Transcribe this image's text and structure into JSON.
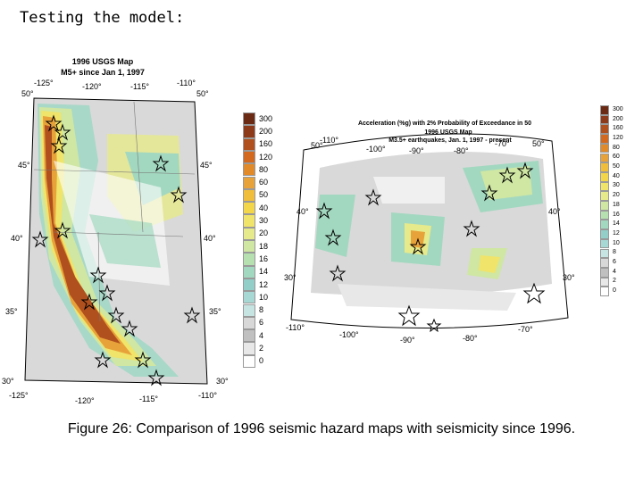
{
  "slide_title": "Testing the model:",
  "caption": "Figure 26: Comparison of 1996 seismic hazard maps with seismicity since 1996.",
  "west_map": {
    "title_line1": "1996 USGS Map",
    "title_line2": "M5+ since Jan 1, 1997",
    "lon_labels_top": [
      "-125°",
      "-120°",
      "-115°",
      "-110°"
    ],
    "lon_labels_bottom": [
      "-125°",
      "-120°",
      "-115°",
      "-110°"
    ],
    "lat_labels_left": [
      "50°",
      "45°",
      "40°",
      "35°",
      "30°"
    ],
    "lat_labels_right": [
      "50°",
      "45°",
      "40°",
      "35°",
      "30°"
    ]
  },
  "east_map": {
    "title_line1": "Acceleration (%g) with 2% Probability of Exceedance in 50",
    "title_line2": "1996 USGS Map",
    "title_line3": "M3.5+ earthquakes, Jan. 1, 1997 - present",
    "lon_labels_top": [
      "-110°",
      "-100°",
      "-90°",
      "-80°",
      "-70°"
    ],
    "lon_labels_bottom": [
      "-110°",
      "-100°",
      "-90°",
      "-80°",
      "-70°"
    ],
    "lat_labels_left": [
      "50°",
      "40°",
      "30°"
    ],
    "lat_labels_right": [
      "50°",
      "40°",
      "30°"
    ]
  },
  "scale_west": {
    "labels": [
      "300",
      "200",
      "160",
      "120",
      "80",
      "60",
      "50",
      "40",
      "30",
      "20",
      "18",
      "16",
      "14",
      "12",
      "10",
      "8",
      "6",
      "4",
      "2",
      "0"
    ],
    "colors": [
      "#6b2a14",
      "#8c3a1a",
      "#b0501e",
      "#d2691e",
      "#e08a2a",
      "#e8a23a",
      "#f0be3a",
      "#f3d64a",
      "#f0e46a",
      "#e6ea8a",
      "#cfe7a3",
      "#b7e0b0",
      "#a3d8c0",
      "#93cfc8",
      "#a8d8d4",
      "#c6e5e2",
      "#d8d8d8",
      "#c0c0c0",
      "#e8e8e8",
      "#ffffff"
    ]
  },
  "scale_east": {
    "labels": [
      "300",
      "200",
      "160",
      "120",
      "80",
      "60",
      "50",
      "40",
      "30",
      "20",
      "18",
      "16",
      "14",
      "12",
      "10",
      "8",
      "6",
      "4",
      "2",
      "0"
    ],
    "colors": [
      "#6b2a14",
      "#8c3a1a",
      "#b0501e",
      "#d2691e",
      "#e08a2a",
      "#e8a23a",
      "#f0be3a",
      "#f3d64a",
      "#f0e46a",
      "#e6ea8a",
      "#cfe7a3",
      "#b7e0b0",
      "#a3d8c0",
      "#93cfc8",
      "#a8d8d4",
      "#c6e5e2",
      "#d8d8d8",
      "#c0c0c0",
      "#e8e8e8",
      "#ffffff"
    ]
  }
}
